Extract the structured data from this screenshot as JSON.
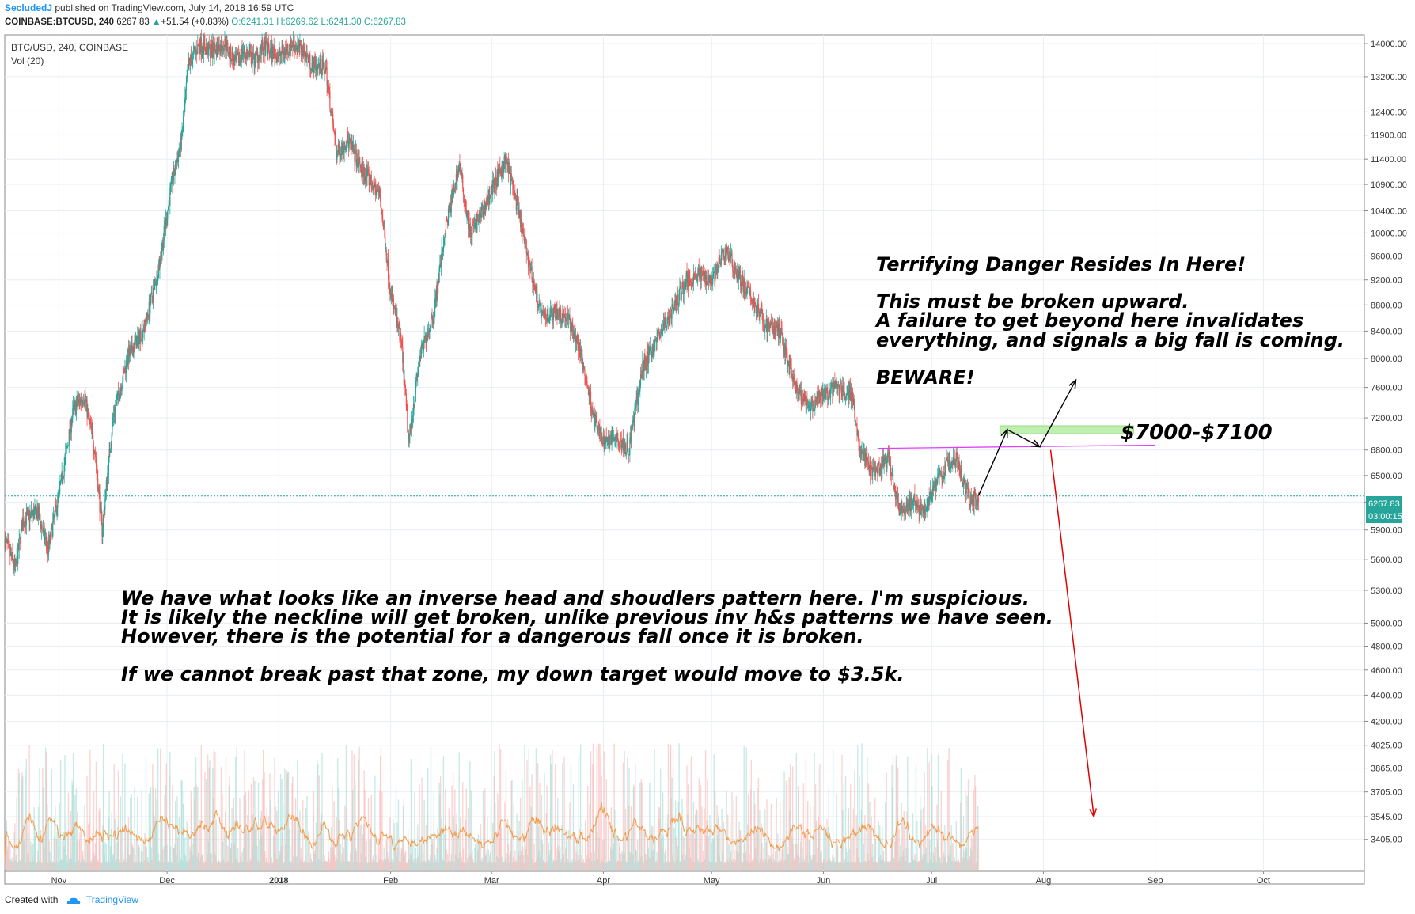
{
  "header": {
    "author": "SecludedJ",
    "published": "published on TradingView.com, July 14, 2018 16:59 UTC",
    "symbol": "COINBASE:BTCUSD, 240",
    "last": "6267.83",
    "change_arrow": "▲",
    "change": "+51.54 (+0.83%)",
    "open": "O:6241.31",
    "high": "H:6269.62",
    "low": "L:6241.30",
    "close": "C:6267.83"
  },
  "legend": {
    "title": "BTC/USD, 240, COINBASE",
    "volume": "Vol (20)"
  },
  "annotations": {
    "top_line1": "Terrifying Danger Resides In Here!",
    "top_line2": "This must be broken upward.",
    "top_line3": "A failure to get beyond here invalidates",
    "top_line4": "everything, and signals a big fall is coming.",
    "top_line5": "BEWARE!",
    "zone_label": "$7000-$7100",
    "bottom_line1": "We have what looks like an inverse head and shoudlers pattern here. I'm suspicious.",
    "bottom_line2": "It is likely the neckline will get broken, unlike previous inv h&s patterns we have seen.",
    "bottom_line3": "However, there is the potential for a dangerous fall once it is broken.",
    "bottom_line4": "If we cannot break past that zone, my down target would move to $3.5k."
  },
  "price_tags": {
    "last": "6267.83",
    "countdown": "03:00:15"
  },
  "footer": {
    "created_with": "Created with",
    "brand": "TradingView"
  },
  "colors": {
    "up": "#26a69a",
    "down": "#ef5350",
    "zone": "#b7f0a7",
    "neckline": "#e040fb",
    "down_arrow": "#e00000",
    "volume_ma": "#f39c4a",
    "accent": "#2196f3"
  },
  "chart_data": {
    "type": "candlestick",
    "symbol": "BTC/USD",
    "interval": "240",
    "exchange": "COINBASE",
    "y_axis_scale": "log",
    "ylim": [
      3300,
      14100
    ],
    "y_ticks": [
      "14000.00",
      "13200.00",
      "12400.00",
      "11900.00",
      "11400.00",
      "10900.00",
      "10400.00",
      "10000.00",
      "9600.00",
      "9200.00",
      "8800.00",
      "8400.00",
      "8000.00",
      "7600.00",
      "7200.00",
      "6800.00",
      "6500.00",
      "6200.00",
      "5900.00",
      "5600.00",
      "5300.00",
      "5000.00",
      "4800.00",
      "4600.00",
      "4400.00",
      "4200.00",
      "4025.00",
      "3865.00",
      "3705.00",
      "3545.00",
      "3405.00"
    ],
    "x_ticks": [
      "Nov",
      "Dec",
      "2018",
      "Feb",
      "Mar",
      "Apr",
      "May",
      "Jun",
      "Jul",
      "Aug",
      "Sep",
      "Oct"
    ],
    "x_dates": [
      "2017-11-01",
      "2017-12-01",
      "2018-01-01",
      "2018-02-01",
      "2018-03-01",
      "2018-04-01",
      "2018-05-01",
      "2018-06-01",
      "2018-07-01",
      "2018-08-01",
      "2018-09-01",
      "2018-10-01"
    ],
    "xlim": [
      "2017-10-17",
      "2018-10-29"
    ],
    "price_path": [
      [
        "2017-10-17",
        5800
      ],
      [
        "2017-10-20",
        5500
      ],
      [
        "2017-10-22",
        6000
      ],
      [
        "2017-10-26",
        6100
      ],
      [
        "2017-10-29",
        5700
      ],
      [
        "2017-11-02",
        6500
      ],
      [
        "2017-11-05",
        7300
      ],
      [
        "2017-11-08",
        7500
      ],
      [
        "2017-11-11",
        6800
      ],
      [
        "2017-11-13",
        5900
      ],
      [
        "2017-11-16",
        7200
      ],
      [
        "2017-11-20",
        8000
      ],
      [
        "2017-11-25",
        8500
      ],
      [
        "2017-11-29",
        9500
      ],
      [
        "2017-12-02",
        10800
      ],
      [
        "2017-12-05",
        11800
      ],
      [
        "2017-12-07",
        13500
      ],
      [
        "2017-12-10",
        14000
      ],
      [
        "2017-12-13",
        13800
      ],
      [
        "2017-12-17",
        14000
      ],
      [
        "2017-12-20",
        13500
      ],
      [
        "2017-12-22",
        13800
      ],
      [
        "2017-12-25",
        13600
      ],
      [
        "2017-12-28",
        13900
      ],
      [
        "2018-01-01",
        13700
      ],
      [
        "2018-01-05",
        14000
      ],
      [
        "2018-01-08",
        13800
      ],
      [
        "2018-01-10",
        13500
      ],
      [
        "2018-01-14",
        13400
      ],
      [
        "2018-01-17",
        11500
      ],
      [
        "2018-01-20",
        11800
      ],
      [
        "2018-01-24",
        11200
      ],
      [
        "2018-01-29",
        10700
      ],
      [
        "2018-02-01",
        9000
      ],
      [
        "2018-02-04",
        8200
      ],
      [
        "2018-02-06",
        6900
      ],
      [
        "2018-02-09",
        8000
      ],
      [
        "2018-02-13",
        8700
      ],
      [
        "2018-02-16",
        10000
      ],
      [
        "2018-02-20",
        11300
      ],
      [
        "2018-02-23",
        10000
      ],
      [
        "2018-02-26",
        10300
      ],
      [
        "2018-03-01",
        10800
      ],
      [
        "2018-03-05",
        11400
      ],
      [
        "2018-03-08",
        10500
      ],
      [
        "2018-03-12",
        9300
      ],
      [
        "2018-03-15",
        8600
      ],
      [
        "2018-03-19",
        8700
      ],
      [
        "2018-03-22",
        8600
      ],
      [
        "2018-03-25",
        8200
      ],
      [
        "2018-03-30",
        7100
      ],
      [
        "2018-04-01",
        6900
      ],
      [
        "2018-04-04",
        7000
      ],
      [
        "2018-04-08",
        6800
      ],
      [
        "2018-04-12",
        7900
      ],
      [
        "2018-04-16",
        8300
      ],
      [
        "2018-04-20",
        8700
      ],
      [
        "2018-04-24",
        9200
      ],
      [
        "2018-04-28",
        9300
      ],
      [
        "2018-05-01",
        9200
      ],
      [
        "2018-05-05",
        9700
      ],
      [
        "2018-05-09",
        9200
      ],
      [
        "2018-05-13",
        8800
      ],
      [
        "2018-05-16",
        8500
      ],
      [
        "2018-05-20",
        8400
      ],
      [
        "2018-05-24",
        7600
      ],
      [
        "2018-05-28",
        7300
      ],
      [
        "2018-06-01",
        7500
      ],
      [
        "2018-06-05",
        7600
      ],
      [
        "2018-06-09",
        7500
      ],
      [
        "2018-06-11",
        6800
      ],
      [
        "2018-06-15",
        6500
      ],
      [
        "2018-06-19",
        6700
      ],
      [
        "2018-06-22",
        6100
      ],
      [
        "2018-06-26",
        6200
      ],
      [
        "2018-06-29",
        6100
      ],
      [
        "2018-07-02",
        6400
      ],
      [
        "2018-07-05",
        6600
      ],
      [
        "2018-07-08",
        6700
      ],
      [
        "2018-07-10",
        6400
      ],
      [
        "2018-07-12",
        6200
      ],
      [
        "2018-07-14",
        6268
      ]
    ],
    "volume_ma_series": "Vol (20)",
    "markup": {
      "resistance_zone": [
        7000,
        7100
      ],
      "neckline": [
        [
          "2018-06-16",
          6820
        ],
        [
          "2018-09-01",
          6860
        ]
      ],
      "projected_path": [
        [
          "2018-07-14",
          6270
        ],
        [
          "2018-07-22",
          7050
        ],
        [
          "2018-07-31",
          6840
        ],
        [
          "2018-08-10",
          7700
        ]
      ],
      "down_arrow": [
        [
          "2018-08-03",
          6800
        ],
        [
          "2018-08-15",
          3545
        ]
      ]
    }
  }
}
